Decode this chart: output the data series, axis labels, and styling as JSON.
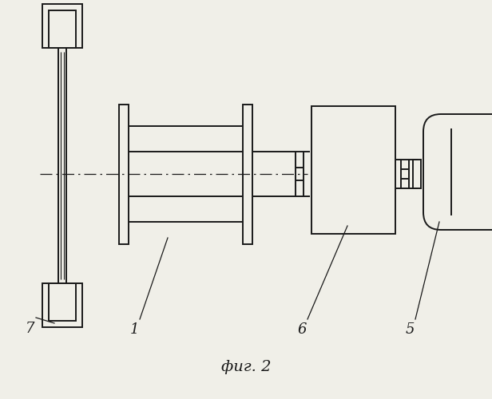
{
  "bg_color": "#f0efe8",
  "line_color": "#1a1a1a",
  "lw": 1.4,
  "fig_caption": "фиг. 2"
}
